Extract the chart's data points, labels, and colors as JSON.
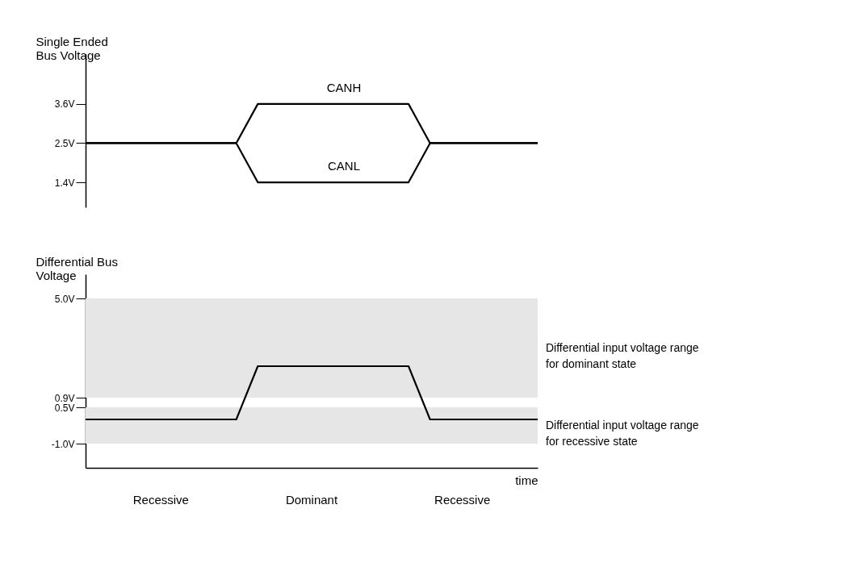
{
  "chart_data": [
    {
      "type": "line",
      "ylabel": "Single Ended Bus Voltage",
      "categories": [
        null,
        null,
        null,
        null,
        null,
        null,
        null,
        null,
        null,
        null,
        null,
        null,
        null,
        null,
        null,
        null,
        null,
        null,
        null,
        null,
        null,
        null
      ],
      "series": [
        {
          "name": "CANH",
          "color": "#000000",
          "values": [
            2.5,
            2.5,
            2.5,
            2.5,
            2.5,
            2.5,
            2.5,
            2.5,
            3.6,
            3.6,
            3.6,
            3.6,
            3.6,
            3.6,
            3.6,
            3.6,
            2.5,
            2.5,
            2.5,
            2.5,
            2.5,
            2.5
          ]
        },
        {
          "name": "CANL",
          "color": "#000000",
          "values": [
            2.5,
            2.5,
            2.5,
            2.5,
            2.5,
            2.5,
            2.5,
            2.5,
            1.4,
            1.4,
            1.4,
            1.4,
            1.4,
            1.4,
            1.4,
            1.4,
            2.5,
            2.5,
            2.5,
            2.5,
            2.5,
            2.5
          ]
        }
      ],
      "ylim": [
        0.7,
        5
      ],
      "yticks": [
        {
          "value": 1.4,
          "label": "1.4V"
        },
        {
          "value": 2.5,
          "label": "2.5V"
        },
        {
          "value": 3.6,
          "label": "3.6V"
        }
      ],
      "tick_labels": "y",
      "marker": "none",
      "line_style": "solid"
    },
    {
      "type": "line",
      "ylabel": "Differential Bus Voltage",
      "xlabel": "time",
      "categories": [
        null,
        null,
        null,
        null,
        null,
        null,
        null,
        null,
        null,
        null,
        null,
        null,
        null,
        null,
        null,
        null,
        null,
        null,
        null,
        null,
        null,
        null
      ],
      "series": [
        {
          "color": "#000000",
          "values": [
            0,
            0,
            0,
            0,
            0,
            0,
            0,
            0,
            2.2,
            2.2,
            2.2,
            2.2,
            2.2,
            2.2,
            2.2,
            2.2,
            0,
            0,
            0,
            0,
            0,
            0
          ]
        }
      ],
      "ylim": [
        -2,
        6
      ],
      "yticks": [
        {
          "value": -1,
          "label": "-1.0V"
        },
        {
          "value": 0.5,
          "label": "0.5V"
        },
        {
          "value": 0.9,
          "label": "0.9V"
        },
        {
          "value": 5,
          "label": "5.0V"
        }
      ],
      "bands": [
        {
          "axis": "y",
          "from": 0.9,
          "to": 5,
          "label": "Differential input voltage range for dominant state",
          "color": "#e6e6e6"
        },
        {
          "axis": "y",
          "from": -1,
          "to": 0.5,
          "label": "Differential input voltage range for recessive state",
          "color": "#e6e6e6"
        }
      ],
      "annotations": [
        "Recessive",
        "Dominant",
        "Recessive"
      ],
      "tick_labels": "y",
      "marker": "none",
      "line_style": "solid"
    }
  ]
}
